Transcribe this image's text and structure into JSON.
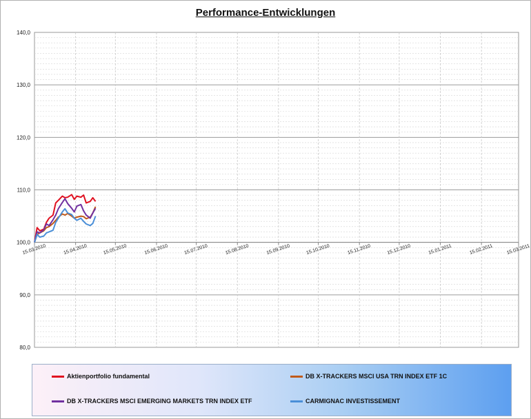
{
  "chart_data": {
    "type": "line",
    "title": "Performance-Entwicklungen",
    "xlabel": "",
    "ylabel": "",
    "ylim": [
      80,
      140
    ],
    "y_ticks": [
      "140,0",
      "130,0",
      "120,0",
      "110,0",
      "100,0",
      "90,0",
      "80,0"
    ],
    "x_range": [
      "2010-03-15",
      "2011-03-15"
    ],
    "x_ticks": [
      "15.03.2010",
      "15.04.2010",
      "15.05.2010",
      "15.06.2010",
      "15.07.2010",
      "15.08.2010",
      "15.09.2010",
      "15.10.2010",
      "15.11.2010",
      "15.12.2010",
      "15.01.2011",
      "15.02.2011",
      "15.03.2011"
    ],
    "grid": "on",
    "legend_position": "bottom",
    "x": [
      "2010-03-15",
      "2010-03-17",
      "2010-03-19",
      "2010-03-22",
      "2010-03-24",
      "2010-03-26",
      "2010-03-29",
      "2010-03-31",
      "2010-04-02",
      "2010-04-05",
      "2010-04-07",
      "2010-04-09",
      "2010-04-12",
      "2010-04-14",
      "2010-04-16",
      "2010-04-19",
      "2010-04-21",
      "2010-04-23",
      "2010-04-26",
      "2010-04-28",
      "2010-04-30"
    ],
    "series": [
      {
        "name": "Aktienportfolio fundamental",
        "color": "#e01020",
        "values": [
          100.0,
          102.8,
          102.2,
          102.5,
          103.8,
          104.6,
          105.2,
          107.5,
          108.0,
          108.8,
          108.5,
          108.6,
          109.1,
          108.2,
          108.8,
          108.6,
          109.0,
          107.5,
          107.8,
          108.5,
          107.8
        ]
      },
      {
        "name": "DB X-TRACKERS MSCI USA TRN INDEX ETF 1C",
        "color": "#c05a1a",
        "values": [
          100.0,
          101.5,
          101.8,
          102.2,
          102.8,
          103.0,
          103.6,
          104.2,
          104.8,
          105.4,
          105.2,
          105.5,
          105.0,
          104.6,
          104.8,
          105.0,
          104.9,
          104.5,
          104.8,
          105.6,
          106.8
        ]
      },
      {
        "name": "DB X-TRACKERS  MSCI EMERGING MARKETS TRN INDEX ETF",
        "color": "#7030a0",
        "values": [
          100.0,
          102.0,
          101.8,
          102.4,
          103.5,
          103.2,
          104.3,
          105.2,
          106.4,
          107.6,
          108.3,
          107.4,
          106.5,
          105.8,
          106.9,
          107.2,
          106.0,
          105.2,
          104.6,
          105.6,
          106.5
        ]
      },
      {
        "name": "CARMIGNAC INVESTISSEMENT",
        "color": "#4a8fd8",
        "values": [
          100.0,
          101.5,
          101.0,
          101.2,
          101.8,
          102.0,
          102.3,
          103.8,
          104.6,
          105.8,
          106.4,
          105.6,
          105.3,
          104.6,
          104.2,
          104.6,
          104.0,
          103.5,
          103.2,
          103.6,
          105.0
        ]
      }
    ]
  }
}
